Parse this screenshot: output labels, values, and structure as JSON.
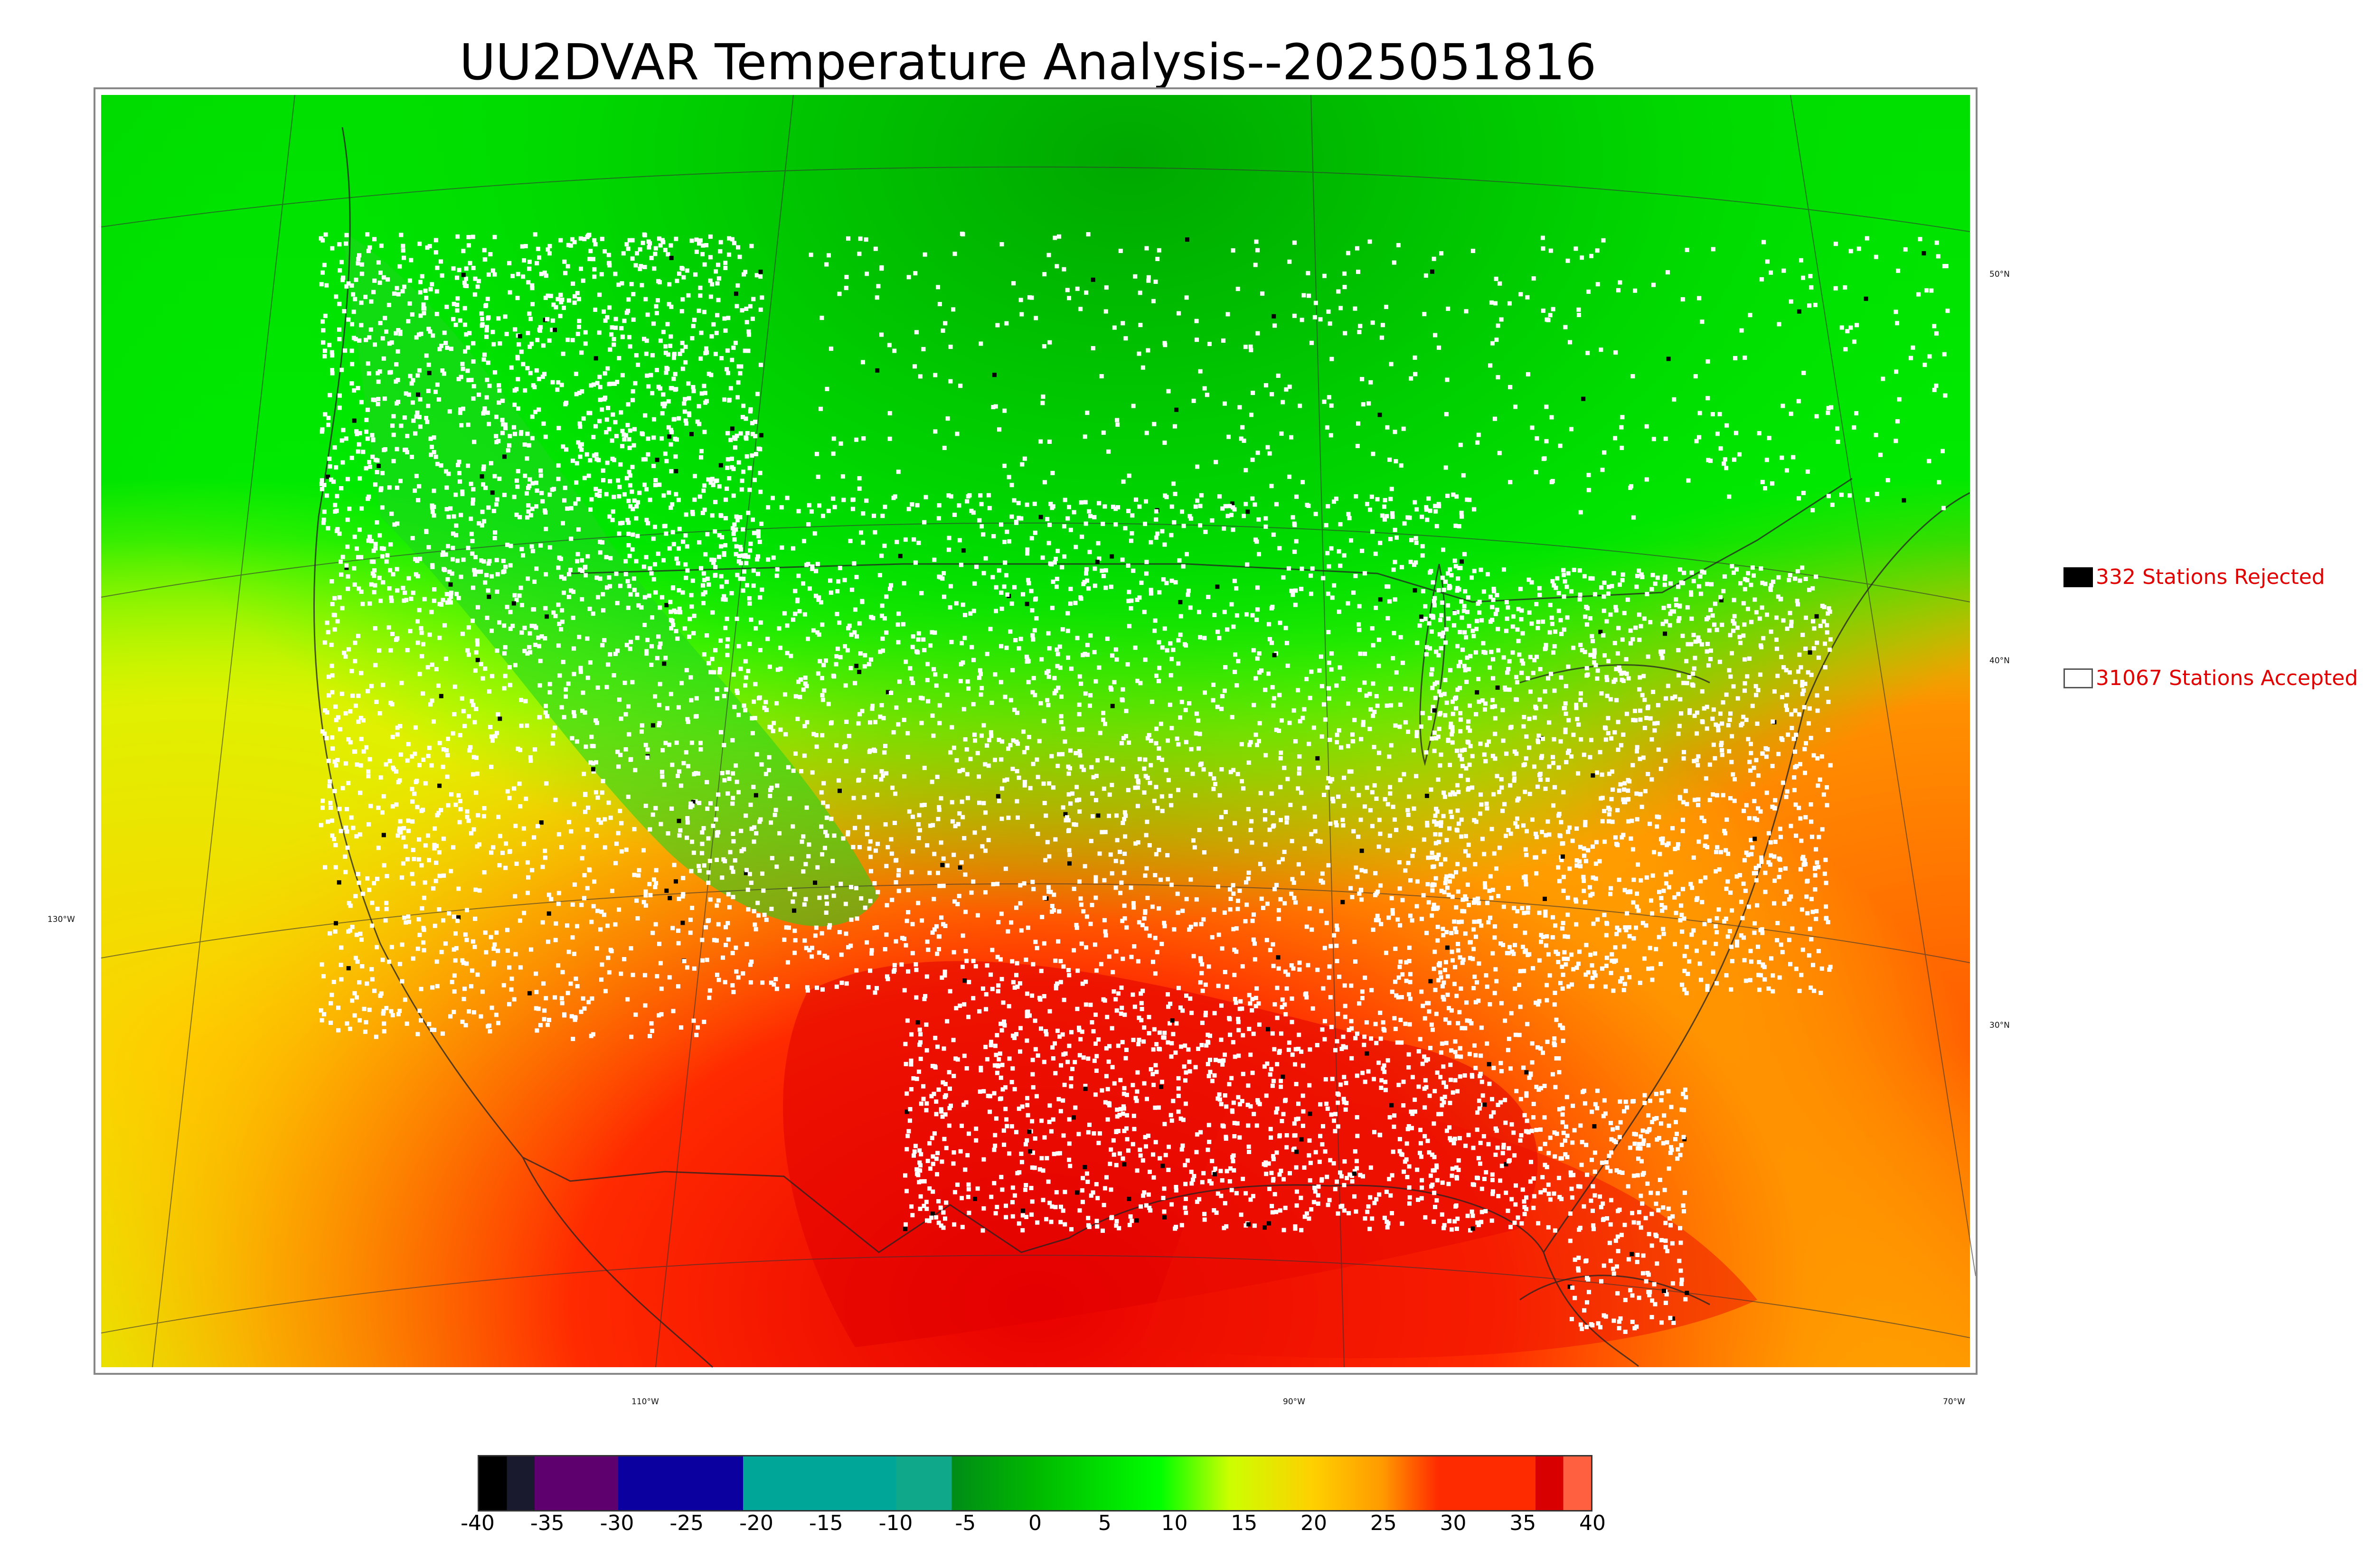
{
  "title": "UU2DVAR Temperature Analysis--2025051816",
  "map": {
    "lat_labels": [
      "50°N",
      "40°N",
      "30°N"
    ],
    "lon_labels": [
      "130°W",
      "110°W",
      "90°W",
      "70°W"
    ],
    "marker_colors": {
      "accepted": "#ffffff",
      "rejected": "#000000"
    }
  },
  "legend": {
    "rejected": {
      "label": "332 Stations Rejected",
      "color": "#000000"
    },
    "accepted": {
      "label": "31067 Stations Accepted",
      "color": "#ffffff"
    }
  },
  "colorbar": {
    "ticks": [
      "-40",
      "-35",
      "-30",
      "-25",
      "-20",
      "-15",
      "-10",
      "-5",
      "0",
      "5",
      "10",
      "15",
      "20",
      "25",
      "30",
      "35",
      "40"
    ],
    "range": [
      -40,
      40
    ],
    "stops": [
      {
        "value": -40,
        "color": "#000000"
      },
      {
        "value": -38,
        "color": "#1a1a2e"
      },
      {
        "value": -36,
        "color": "#5f006f"
      },
      {
        "value": -30,
        "color": "#0b009f"
      },
      {
        "value": -21,
        "color": "#00a798"
      },
      {
        "value": -10,
        "color": "#0fa88a"
      },
      {
        "value": -6,
        "color": "#008c17"
      },
      {
        "value": 0,
        "color": "#00b800"
      },
      {
        "value": 9,
        "color": "#00ff00"
      },
      {
        "value": 14,
        "color": "#ccff00"
      },
      {
        "value": 20,
        "color": "#ffd000"
      },
      {
        "value": 25,
        "color": "#ff9a00"
      },
      {
        "value": 29,
        "color": "#ff2b00"
      },
      {
        "value": 36,
        "color": "#d80000"
      },
      {
        "value": 38,
        "color": "#ff6040"
      },
      {
        "value": 40,
        "color": "#d8d8d8"
      }
    ]
  }
}
